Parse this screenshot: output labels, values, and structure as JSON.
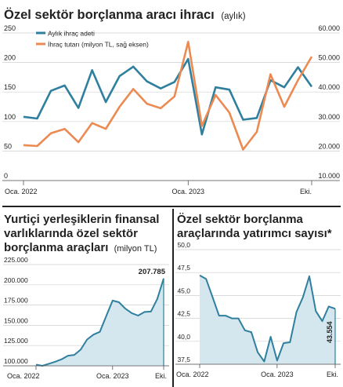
{
  "charts": {
    "top": {
      "title": "Özel sektör borçlanma aracı ihracı",
      "subtitle": "(aylık)",
      "legend": [
        "Aylık ihraç adeti",
        "İhraç tutarı (milyon TL, sağ eksen)"
      ]
    },
    "left": {
      "title_lines": [
        "Yurtiçi yerleşiklerin finansal",
        "varlıklarında özel sektör",
        "borçlanma araçları"
      ],
      "unit": "(milyon TL)",
      "last_label": "207.785"
    },
    "right": {
      "title_lines": [
        "Özel sektör borçlanma",
        "araçlarında yatırımcı sayısı*"
      ],
      "last_label": "43.554"
    }
  },
  "colors": {
    "blue": "#2f7f9e",
    "orange": "#ec8a52",
    "area": "#d4e6ee",
    "area_line": "#2f7f9e",
    "text": "#222222"
  },
  "chart_data": [
    {
      "type": "line",
      "title": "Özel sektör borçlanma aracı ihracı (aylık)",
      "x_ticks": [
        "Oca. 2022",
        "Oca. 2023",
        "Eki."
      ],
      "y_left_ticks": [
        "250",
        "200",
        "150",
        "100",
        "50",
        "0"
      ],
      "y_right_ticks": [
        "60.000",
        "50.000",
        "40.000",
        "30.000",
        "20.000",
        "10.000"
      ],
      "ylim_left": [
        0,
        250
      ],
      "ylim_right": [
        10000,
        60000
      ],
      "legend_position": "top-left",
      "series": [
        {
          "name": "Aylık ihraç adeti",
          "axis": "left",
          "values": [
            108,
            105,
            152,
            161,
            123,
            187,
            133,
            177,
            193,
            168,
            156,
            167,
            206,
            78,
            158,
            154,
            103,
            106,
            170,
            158,
            192,
            159
          ]
        },
        {
          "name": "İhraç tutarı (milyon TL, sağ eksen)",
          "axis": "right",
          "values": [
            22000,
            21700,
            26000,
            27500,
            23000,
            29500,
            27500,
            35000,
            41000,
            36000,
            34500,
            38500,
            57000,
            28500,
            39000,
            33000,
            20500,
            26500,
            46000,
            35000,
            44000,
            52000
          ]
        }
      ]
    },
    {
      "type": "area",
      "title": "Yurtiçi yerleşiklerin finansal varlıklarında özel sektör borçlanma araçları (milyon TL)",
      "x_ticks": [
        "Oca. 2022",
        "Oca. 2023",
        "Eki."
      ],
      "y_ticks": [
        "225.000",
        "200.000",
        "175.000",
        "150.000",
        "125.000",
        "100.000"
      ],
      "ylim": [
        100000,
        225000
      ],
      "values": [
        101500,
        100000,
        102500,
        105000,
        108000,
        112500,
        113500,
        120000,
        132500,
        138500,
        142000,
        161500,
        180500,
        178500,
        170500,
        165000,
        162000,
        166500,
        167000,
        182500,
        207785
      ]
    },
    {
      "type": "area",
      "title": "Özel sektör borçlanma araçlarında yatırımcı sayısı*",
      "x_ticks": [
        "Oca. 2022",
        "Oca. 2023",
        "Eki."
      ],
      "y_ticks": [
        "50,0",
        "47,5",
        "45,0",
        "42,5",
        "40,0",
        "37,5"
      ],
      "ylim": [
        37.5,
        50.0
      ],
      "values": [
        47.2,
        46.8,
        44.8,
        42.8,
        42.8,
        42.5,
        42.5,
        41.2,
        41.0,
        38.8,
        37.8,
        40.5,
        37.9,
        39.8,
        39.9,
        43.2,
        44.8,
        47.1,
        43.3,
        42.2,
        43.8,
        43.554
      ]
    }
  ]
}
